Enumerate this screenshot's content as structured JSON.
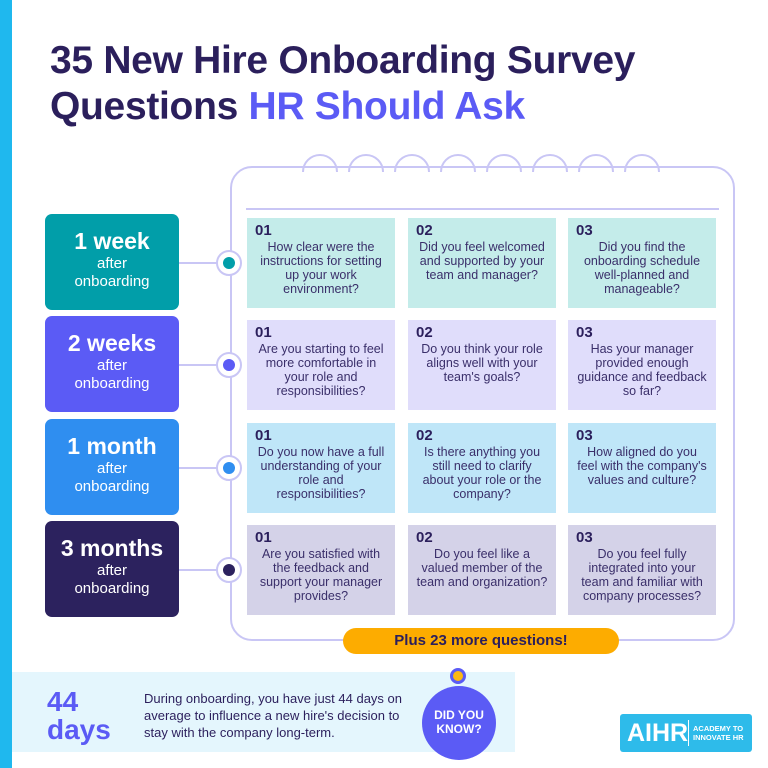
{
  "title": {
    "line1": "35 New Hire Onboarding Survey",
    "line2_plain": "Questions ",
    "line2_accent": "HR Should Ask"
  },
  "colors": {
    "accent": "#5b5bf5",
    "title": "#2b1f5c",
    "stripe": "#1fb8ee",
    "banner": "#fdac00"
  },
  "rows": [
    {
      "big": "1 week",
      "small1": "after",
      "small2": "onboarding",
      "color": "#019ea9",
      "card_color": "#c4ecea",
      "questions": [
        {
          "num": "01",
          "text": "How clear were the instructions for setting up your work environment?"
        },
        {
          "num": "02",
          "text": "Did you feel welcomed and supported by your team and manager?"
        },
        {
          "num": "03",
          "text": "Did you find the onboarding schedule well-planned and manageable?"
        }
      ]
    },
    {
      "big": "2 weeks",
      "small1": "after",
      "small2": "onboarding",
      "color": "#5b5bf5",
      "card_color": "#e0ddfb",
      "questions": [
        {
          "num": "01",
          "text": "Are you starting to feel more comfortable in your role and responsibilities?"
        },
        {
          "num": "02",
          "text": "Do you think your role aligns well with your team's goals?"
        },
        {
          "num": "03",
          "text": "Has your manager provided enough guidance and feedback so far?"
        }
      ]
    },
    {
      "big": "1 month",
      "small1": "after",
      "small2": "onboarding",
      "color": "#2f8ef0",
      "card_color": "#bfe6f8",
      "questions": [
        {
          "num": "01",
          "text": "Do you now have a full understanding of your role and responsibilities?"
        },
        {
          "num": "02",
          "text": "Is there anything you still need to clarify about your role or the company?"
        },
        {
          "num": "03",
          "text": "How aligned do you feel with the company's values and culture?"
        }
      ]
    },
    {
      "big": "3 months",
      "small1": "after",
      "small2": "onboarding",
      "color": "#2c225e",
      "card_color": "#d4d2e8",
      "questions": [
        {
          "num": "01",
          "text": "Are you satisfied with the feedback and support your manager provides?"
        },
        {
          "num": "02",
          "text": "Do you feel like a valued member of the team and organization?"
        },
        {
          "num": "03",
          "text": "Do you feel fully integrated into your team and familiar with company processes?"
        }
      ]
    }
  ],
  "plus": "Plus 23 more questions!",
  "fact": {
    "number": "44",
    "unit": "days",
    "text": "During onboarding, you have just 44 days on average to influence a new hire's decision to stay with the company long-term.",
    "bubble1": "DID YOU",
    "bubble2": "KNOW?",
    "icon": "lightbulb-icon"
  },
  "logo": {
    "brand": "AIHR",
    "tag1": "ACADEMY TO",
    "tag2": "INNOVATE HR"
  }
}
